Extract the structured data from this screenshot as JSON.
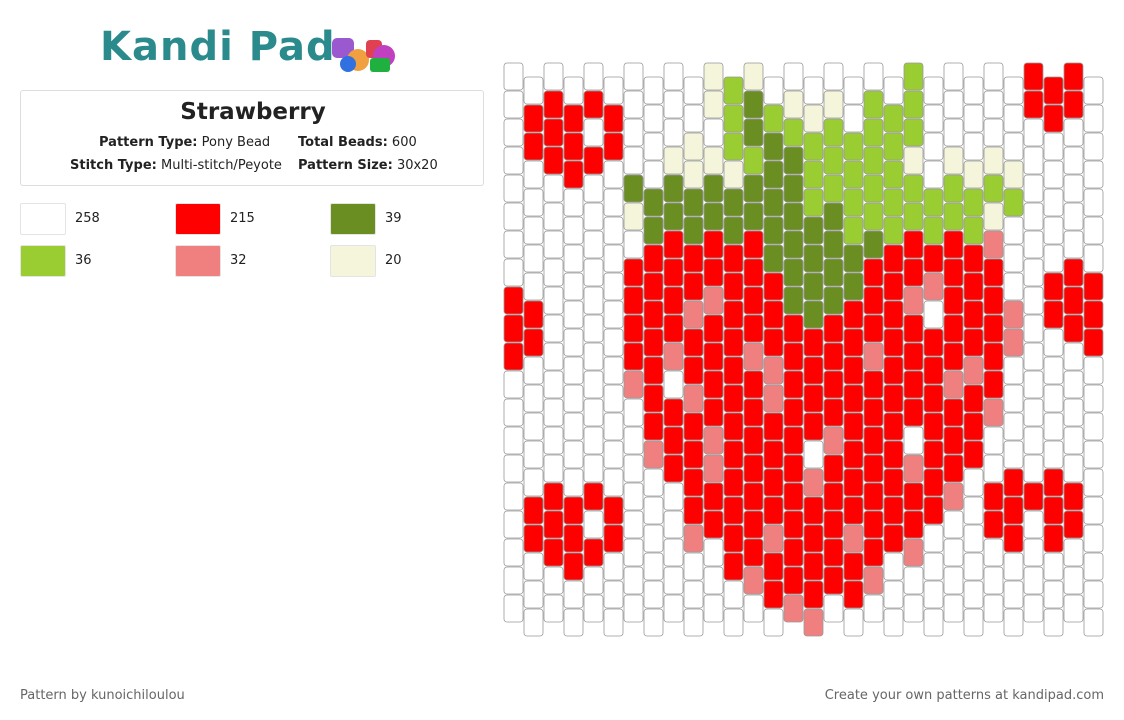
{
  "logo": {
    "text": "Kandi Pad"
  },
  "pattern": {
    "title": "Strawberry",
    "details": [
      {
        "label": "Pattern Type:",
        "value": "Pony Bead"
      },
      {
        "label": "Total Beads:",
        "value": "600"
      },
      {
        "label": "Stitch Type:",
        "value": "Multi-stitch/Peyote"
      },
      {
        "label": "Pattern Size:",
        "value": "30x20"
      }
    ]
  },
  "colors": [
    {
      "color": "#ffffff",
      "count": 258
    },
    {
      "color": "#ff0000",
      "count": 215
    },
    {
      "color": "#6b8e23",
      "count": 39
    },
    {
      "color": "#9acd32",
      "count": 36
    },
    {
      "color": "#f08080",
      "count": 32
    },
    {
      "color": "#f5f5dc",
      "count": 20
    }
  ],
  "footer": {
    "left": "Pattern by kunoichiloulou",
    "right": "Create your own patterns at kandipad.com"
  }
}
